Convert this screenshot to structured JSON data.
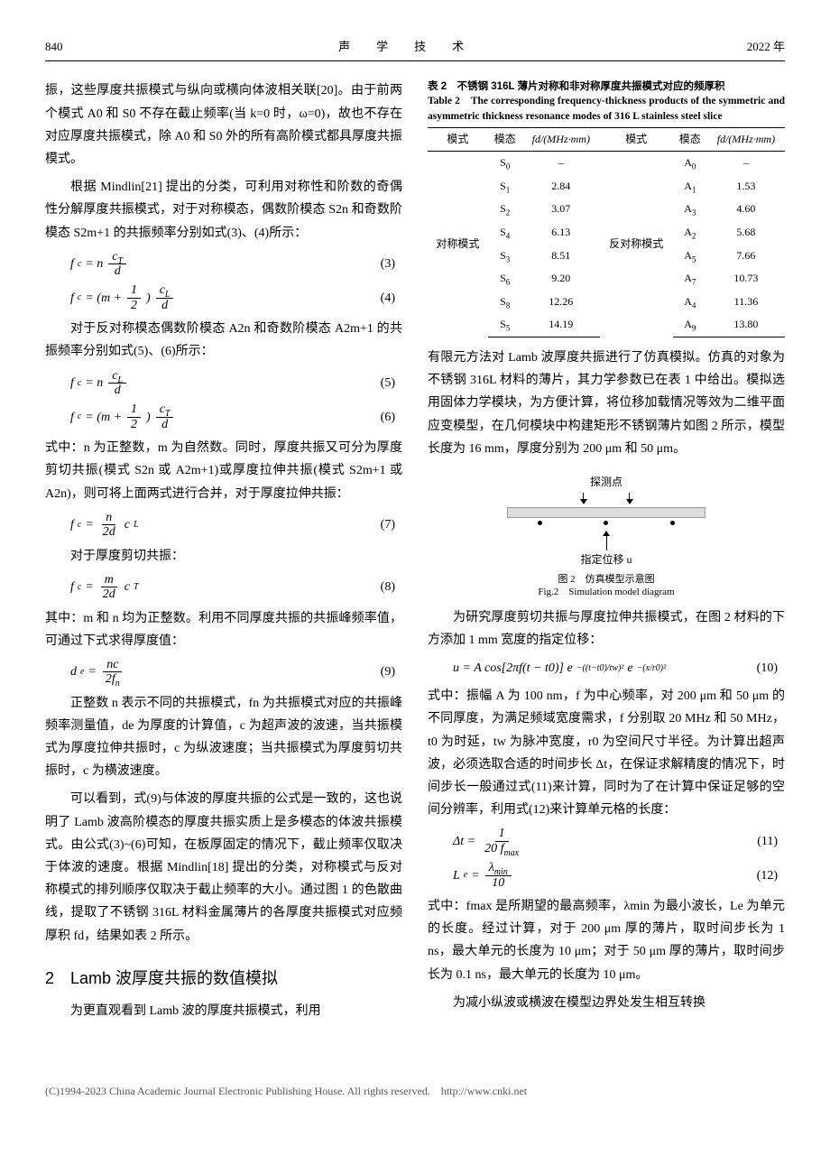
{
  "header": {
    "page": "840",
    "journal": "声　学　技　术",
    "year": "2022 年"
  },
  "left": {
    "p1": "振，这些厚度共振模式与纵向或横向体波相关联[20]。由于前两个模式 A0 和 S0 不存在截止频率(当 k=0 时，ω=0)，故也不存在对应厚度共振模式，除 A0 和 S0 外的所有高阶模式都具厚度共振模式。",
    "p2": "根据 Mindlin[21] 提出的分类，可利用对称性和阶数的奇偶性分解厚度共振模式，对于对称模态，偶数阶模态 S2n 和奇数阶模态 S2m+1 的共振频率分别如式(3)、(4)所示：",
    "eq3_num": "(3)",
    "eq4_num": "(4)",
    "p3": "对于反对称模态偶数阶模态 A2n 和奇数阶模态 A2m+1 的共振频率分别如式(5)、(6)所示：",
    "eq5_num": "(5)",
    "eq6_num": "(6)",
    "p4": "式中：n 为正整数，m 为自然数。同时，厚度共振又可分为厚度剪切共振(模式 S2n 或 A2m+1)或厚度拉伸共振(模式 S2m+1 或 A2n)，则可将上面两式进行合并，对于厚度拉伸共振：",
    "eq7_num": "(7)",
    "p5": "对于厚度剪切共振：",
    "eq8_num": "(8)",
    "p6": "其中：m 和 n 均为正整数。利用不同厚度共振的共振峰频率值，可通过下式求得厚度值：",
    "eq9_num": "(9)",
    "p7": "正整数 n 表示不同的共振模式，fn 为共振模式对应的共振峰频率测量值，de 为厚度的计算值，c 为超声波的波速，当共振模式为厚度拉伸共振时，c 为纵波速度；当共振模式为厚度剪切共振时，c 为横波速度。",
    "p8": "可以看到，式(9)与体波的厚度共振的公式是一致的，这也说明了 Lamb 波高阶模态的厚度共振实质上是多模态的体波共振模式。由公式(3)~(6)可知，在板厚固定的情况下，截止频率仅取决于体波的速度。根据 Mindlin[18] 提出的分类，对称模式与反对称模式的排列顺序仅取决于截止频率的大小。通过图 1 的色散曲线，提取了不锈钢 316L 材料金属薄片的各厚度共振模式对应频厚积 fd，结果如表 2 所示。",
    "section2": "2　Lamb 波厚度共振的数值模拟",
    "p9": "为更直观看到 Lamb 波的厚度共振模式，利用"
  },
  "right": {
    "table2_cap_cn": "表 2　不锈钢 316L 薄片对称和非对称厚度共振模式对应的频厚积",
    "table2_cap_en": "Table 2　The corresponding frequency-thickness products of the symmetric and asymmetric thickness resonance modes of 316 L stainless steel slice",
    "table2_head_mode": "模式",
    "table2_head_modal": "模态",
    "table2_head_fd": "fd/(MHz·mm)",
    "table2_sym": "对称模式",
    "table2_asym": "反对称模式",
    "sym_modes": [
      "S0",
      "S1",
      "S2",
      "S4",
      "S3",
      "S6",
      "S8",
      "S5"
    ],
    "sym_fd": [
      "–",
      "2.84",
      "3.07",
      "6.13",
      "8.51",
      "9.20",
      "12.26",
      "14.19"
    ],
    "asym_modes": [
      "A0",
      "A1",
      "A3",
      "A2",
      "A5",
      "A7",
      "A4",
      "A9"
    ],
    "asym_fd": [
      "–",
      "1.53",
      "4.60",
      "5.68",
      "7.66",
      "10.73",
      "11.36",
      "13.80"
    ],
    "p1": "有限元方法对 Lamb 波厚度共振进行了仿真模拟。仿真的对象为不锈钢 316L 材料的薄片，其力学参数已在表 1 中给出。模拟选用固体力学模块，为方便计算，将位移加载情况等效为二维平面应变模型，在几何模块中构建矩形不锈钢薄片如图 2 所示，模型长度为 16 mm，厚度分别为 200 μm 和 50 μm。",
    "fig2_probe": "探测点",
    "fig2_disp": "指定位移 u",
    "fig2_cap_cn": "图 2　仿真模型示意图",
    "fig2_cap_en": "Fig.2　Simulation model diagram",
    "p2": "为研究厚度剪切共振与厚度拉伸共振模式，在图 2 材料的下方添加 1 mm 宽度的指定位移：",
    "eq10": "u = A cos[2πf(t − t0)] e",
    "eq10_exp1": "−((t−t0)/tw)²",
    "eq10_exp2": "e",
    "eq10_exp3": "−(x/r0)²",
    "eq10_num": "(10)",
    "p3": "式中：振幅 A 为 100 nm，f 为中心频率，对 200 μm 和 50 μm 的不同厚度，为满足频域宽度需求，f 分别取 20 MHz 和 50 MHz，t0 为时延，tw 为脉冲宽度，r0 为空间尺寸半径。为计算出超声波，必须选取合适的时间步长 Δt，在保证求解精度的情况下，时间步长一般通过式(11)来计算，同时为了在计算中保证足够的空间分辨率，利用式(12)来计算单元格的长度：",
    "eq11_num": "(11)",
    "eq12_num": "(12)",
    "p4": "式中：fmax 是所期望的最高频率，λmin 为最小波长，Le 为单元的长度。经过计算，对于 200 μm 厚的薄片，取时间步长为 1 ns，最大单元的长度为 10 μm；对于 50 μm 厚的薄片，取时间步长为 0.1 ns，最大单元的长度为 10 μm。",
    "p5": "为减小纵波或横波在模型边界处发生相互转换"
  },
  "footer": "(C)1994-2023 China Academic Journal Electronic Publishing House. All rights reserved.　http://www.cnki.net"
}
